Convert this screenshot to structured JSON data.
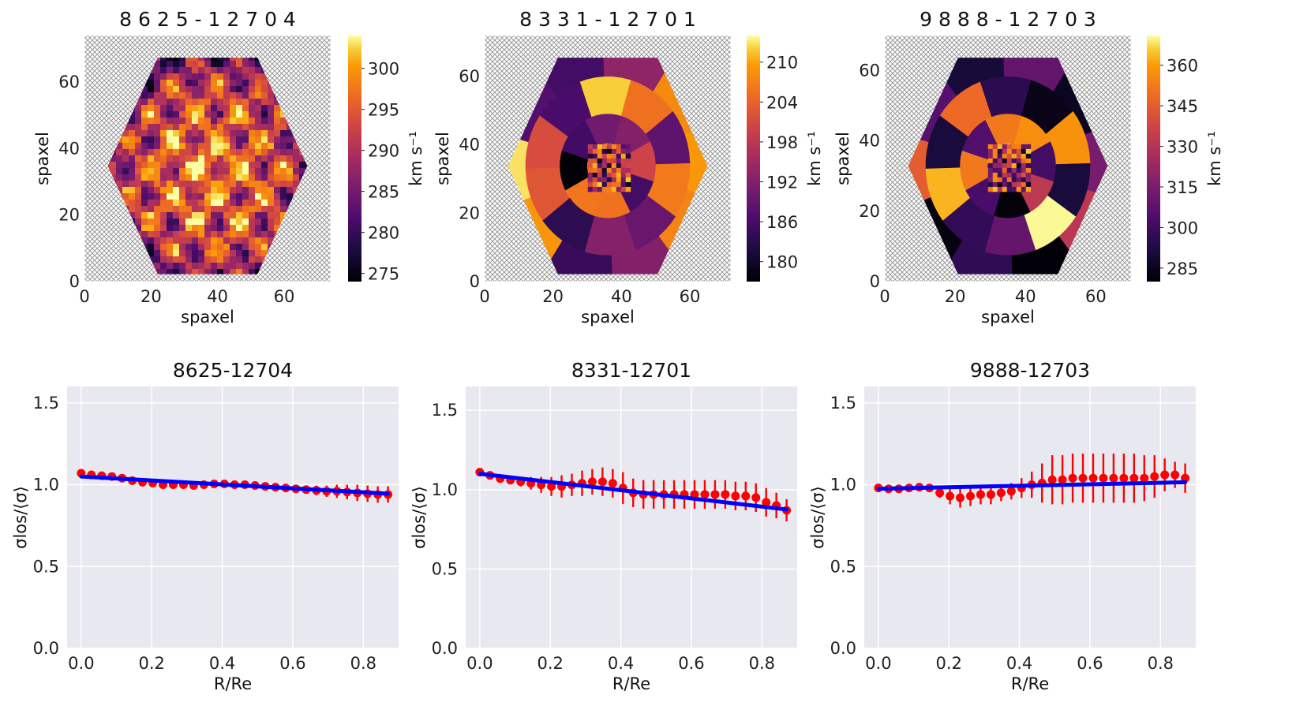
{
  "chart_data": [
    {
      "type": "heatmap",
      "title": "8 6 2 5 - 1 2 7 0 4",
      "xlabel": "spaxel",
      "ylabel": "spaxel",
      "xticks": [
        0,
        20,
        40,
        60
      ],
      "yticks": [
        0,
        20,
        40,
        60
      ],
      "xlim": [
        0,
        74
      ],
      "ylim": [
        0,
        74
      ],
      "colorbar": {
        "label": "km s⁻¹",
        "ticks": [
          275,
          280,
          285,
          290,
          295,
          300
        ],
        "range": [
          274,
          304
        ]
      },
      "map_style": "fine-grained"
    },
    {
      "type": "heatmap",
      "title": "8 3 3 1 - 1 2 7 0 1",
      "xlabel": "spaxel",
      "ylabel": "spaxel",
      "xticks": [
        0,
        20,
        40,
        60
      ],
      "yticks": [
        0,
        20,
        40,
        60
      ],
      "xlim": [
        0,
        72
      ],
      "ylim": [
        0,
        72
      ],
      "colorbar": {
        "label": "km s⁻¹",
        "ticks": [
          180,
          186,
          192,
          198,
          204,
          210
        ],
        "range": [
          177,
          214
        ]
      },
      "map_style": "voronoi-binned"
    },
    {
      "type": "heatmap",
      "title": "9 8 8 8 - 1 2 7 0 3",
      "xlabel": "spaxel",
      "ylabel": "spaxel",
      "xticks": [
        0,
        20,
        40,
        60
      ],
      "yticks": [
        0,
        20,
        40,
        60
      ],
      "xlim": [
        0,
        70
      ],
      "ylim": [
        0,
        70
      ],
      "colorbar": {
        "label": "km s⁻¹",
        "ticks": [
          285,
          300,
          315,
          330,
          345,
          360
        ],
        "range": [
          280,
          371
        ]
      },
      "map_style": "voronoi-binned"
    },
    {
      "type": "scatter",
      "title": "8625-12704",
      "xlabel": "R/Re",
      "ylabel": "σlos/⟨σ⟩",
      "xticks": [
        0.0,
        0.2,
        0.4,
        0.6,
        0.8
      ],
      "yticks": [
        0.0,
        0.5,
        1.0,
        1.5
      ],
      "xlim": [
        -0.04,
        0.9
      ],
      "ylim": [
        0,
        1.6
      ],
      "x": [
        0.0,
        0.029,
        0.058,
        0.087,
        0.116,
        0.145,
        0.174,
        0.203,
        0.232,
        0.261,
        0.29,
        0.319,
        0.348,
        0.377,
        0.406,
        0.435,
        0.464,
        0.493,
        0.522,
        0.551,
        0.58,
        0.609,
        0.638,
        0.667,
        0.696,
        0.725,
        0.754,
        0.783,
        0.812,
        0.841,
        0.87
      ],
      "y": [
        1.07,
        1.06,
        1.055,
        1.05,
        1.04,
        1.025,
        1.015,
        1.01,
        1.0,
        1.0,
        1.0,
        0.995,
        1.0,
        1.005,
        1.005,
        1.0,
        1.0,
        0.995,
        0.99,
        0.985,
        0.98,
        0.975,
        0.97,
        0.965,
        0.96,
        0.96,
        0.955,
        0.95,
        0.945,
        0.94,
        0.94
      ],
      "err": [
        0.01,
        0.01,
        0.01,
        0.01,
        0.01,
        0.01,
        0.01,
        0.01,
        0.01,
        0.01,
        0.01,
        0.01,
        0.01,
        0.01,
        0.01,
        0.01,
        0.01,
        0.01,
        0.01,
        0.015,
        0.015,
        0.02,
        0.025,
        0.03,
        0.035,
        0.04,
        0.045,
        0.05,
        0.05,
        0.05,
        0.05
      ],
      "fit": {
        "x": [
          0.0,
          0.87
        ],
        "y": [
          1.05,
          0.945
        ]
      }
    },
    {
      "type": "scatter",
      "title": "8331-12701",
      "xlabel": "R/Re",
      "ylabel": "σlos/⟨σ⟩",
      "xticks": [
        0.0,
        0.2,
        0.4,
        0.6,
        0.8
      ],
      "yticks": [
        0.0,
        0.5,
        1.0,
        1.5
      ],
      "xlim": [
        -0.04,
        0.9
      ],
      "ylim": [
        0,
        1.65
      ],
      "x": [
        0.0,
        0.029,
        0.058,
        0.087,
        0.116,
        0.145,
        0.174,
        0.203,
        0.232,
        0.261,
        0.29,
        0.319,
        0.348,
        0.377,
        0.406,
        0.435,
        0.464,
        0.493,
        0.522,
        0.551,
        0.58,
        0.609,
        0.638,
        0.667,
        0.696,
        0.725,
        0.754,
        0.783,
        0.812,
        0.841,
        0.87
      ],
      "y": [
        1.11,
        1.09,
        1.07,
        1.06,
        1.05,
        1.04,
        1.03,
        1.02,
        1.02,
        1.03,
        1.04,
        1.05,
        1.05,
        1.04,
        1.01,
        0.98,
        0.97,
        0.97,
        0.97,
        0.97,
        0.97,
        0.97,
        0.97,
        0.97,
        0.97,
        0.96,
        0.96,
        0.95,
        0.92,
        0.9,
        0.87
      ],
      "err": [
        0.01,
        0.01,
        0.02,
        0.02,
        0.03,
        0.04,
        0.05,
        0.06,
        0.07,
        0.07,
        0.08,
        0.08,
        0.09,
        0.09,
        0.1,
        0.09,
        0.09,
        0.09,
        0.09,
        0.09,
        0.09,
        0.09,
        0.09,
        0.09,
        0.09,
        0.09,
        0.09,
        0.09,
        0.09,
        0.08,
        0.07
      ],
      "fit": {
        "x": [
          0.0,
          0.87
        ],
        "y": [
          1.1,
          0.875
        ]
      }
    },
    {
      "type": "scatter",
      "title": "9888-12703",
      "xlabel": "R/Re",
      "ylabel": "σlos/⟨σ⟩",
      "xticks": [
        0.0,
        0.2,
        0.4,
        0.6,
        0.8
      ],
      "yticks": [
        0.0,
        0.5,
        1.0,
        1.5
      ],
      "xlim": [
        -0.04,
        0.9
      ],
      "ylim": [
        0,
        1.6
      ],
      "x": [
        0.0,
        0.029,
        0.058,
        0.087,
        0.116,
        0.145,
        0.174,
        0.203,
        0.232,
        0.261,
        0.29,
        0.319,
        0.348,
        0.377,
        0.406,
        0.435,
        0.464,
        0.493,
        0.522,
        0.551,
        0.58,
        0.609,
        0.638,
        0.667,
        0.696,
        0.725,
        0.754,
        0.783,
        0.812,
        0.841,
        0.87
      ],
      "y": [
        0.98,
        0.975,
        0.975,
        0.98,
        0.985,
        0.98,
        0.95,
        0.93,
        0.92,
        0.93,
        0.94,
        0.94,
        0.95,
        0.96,
        0.98,
        1.0,
        1.01,
        1.03,
        1.03,
        1.04,
        1.04,
        1.04,
        1.04,
        1.04,
        1.04,
        1.04,
        1.04,
        1.05,
        1.06,
        1.06,
        1.04
      ],
      "err": [
        0.01,
        0.01,
        0.01,
        0.01,
        0.01,
        0.02,
        0.03,
        0.05,
        0.06,
        0.06,
        0.06,
        0.06,
        0.05,
        0.05,
        0.06,
        0.08,
        0.12,
        0.15,
        0.15,
        0.15,
        0.15,
        0.15,
        0.15,
        0.15,
        0.15,
        0.15,
        0.14,
        0.13,
        0.1,
        0.08,
        0.09
      ],
      "fit": {
        "x": [
          0.0,
          0.87
        ],
        "y": [
          0.975,
          1.015
        ]
      }
    }
  ]
}
